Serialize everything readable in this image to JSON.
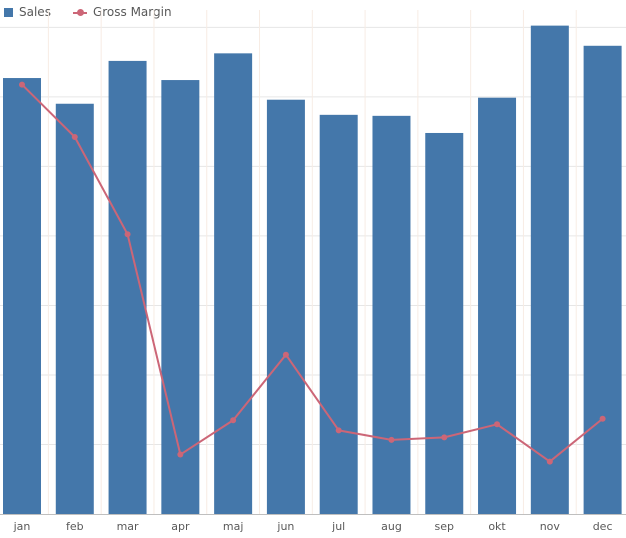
{
  "legend": {
    "sales_label": "Sales",
    "margin_label": "Gross Margin"
  },
  "colors": {
    "sales": "#4477aa",
    "margin": "#cc6677",
    "grid": "#e6e6e6",
    "axis": "#bfbfbf"
  },
  "chart_data": {
    "type": "bar",
    "title": "",
    "xlabel": "",
    "ylabel": "",
    "categories": [
      "jan",
      "feb",
      "mar",
      "apr",
      "maj",
      "jun",
      "jul",
      "aug",
      "sep",
      "okt",
      "nov",
      "dec"
    ],
    "ylim": [
      0,
      100
    ],
    "series": [
      {
        "name": "Sales",
        "type": "bar",
        "values": [
          86.5,
          81.4,
          89.9,
          86.1,
          91.4,
          82.2,
          79.2,
          79.0,
          75.6,
          82.6,
          96.9,
          92.9
        ]
      },
      {
        "name": "Gross Margin",
        "type": "line",
        "values": [
          85.2,
          74.8,
          55.5,
          11.8,
          18.6,
          31.6,
          16.6,
          14.7,
          15.2,
          17.8,
          10.4,
          18.9
        ]
      }
    ],
    "grid": true,
    "legend_position": "top-left"
  }
}
